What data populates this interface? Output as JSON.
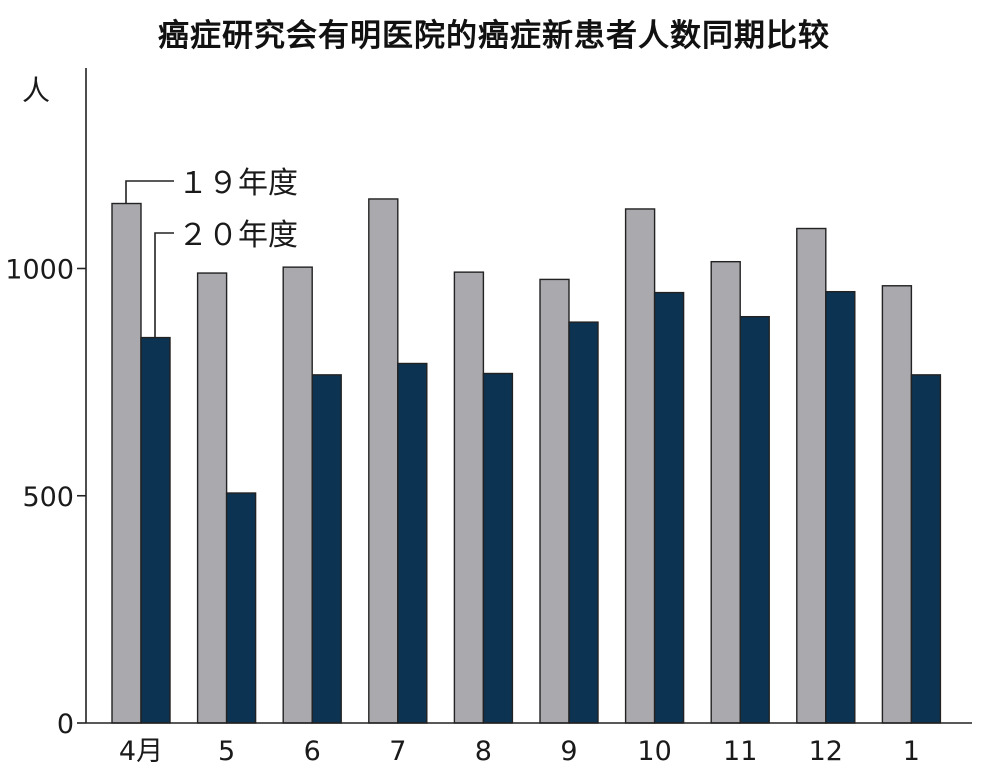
{
  "chart_data": {
    "type": "bar",
    "title": "癌症研究会有明医院的癌症新患者人数同期比较",
    "ylabel": "人",
    "xlabel": "",
    "categories": [
      "4月",
      "5",
      "6",
      "7",
      "8",
      "9",
      "10",
      "11",
      "12",
      "1"
    ],
    "yticks": [
      0,
      500,
      1000
    ],
    "ylim": [
      0,
      1480
    ],
    "grid": false,
    "legend_placement": "top-left (leader lines to first bars)",
    "series": [
      {
        "name": "１９年度",
        "color": "#a9a9ae",
        "values": [
          1143,
          990,
          1003,
          1153,
          992,
          976,
          1131,
          1015,
          1088,
          962
        ]
      },
      {
        "name": "２０年度",
        "color": "#0c3352",
        "values": [
          848,
          506,
          766,
          791,
          769,
          882,
          947,
          894,
          949,
          766
        ]
      }
    ]
  }
}
